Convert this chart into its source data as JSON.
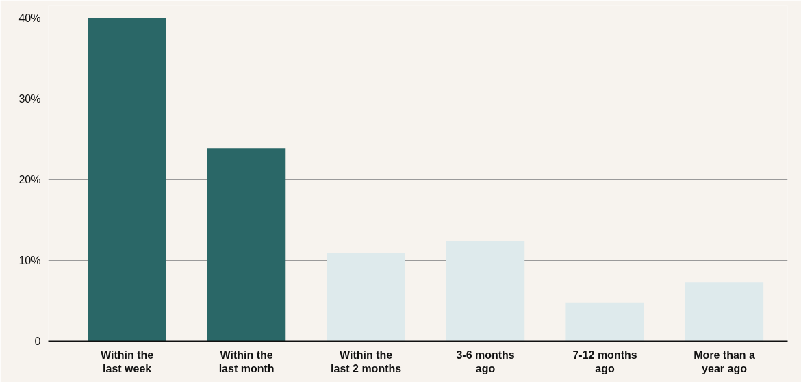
{
  "chart_data": {
    "type": "bar",
    "categories": [
      "Within the\nlast week",
      "Within the\nlast month",
      "Within the\nlast 2 months",
      "3-6 months\nago",
      "7-12 months\nago",
      "More than a\nyear ago"
    ],
    "values": [
      40,
      23.9,
      10.9,
      12.4,
      4.8,
      7.3
    ],
    "colors": [
      "#2a6767",
      "#2a6767",
      "#deeaec",
      "#deeaec",
      "#deeaec",
      "#deeaec"
    ],
    "ylim": [
      0,
      41.5
    ],
    "yticks": [
      {
        "value": 0,
        "label": "0"
      },
      {
        "value": 10,
        "label": "10%"
      },
      {
        "value": 20,
        "label": "20%"
      },
      {
        "value": 30,
        "label": "30%"
      },
      {
        "value": 40,
        "label": "40%"
      }
    ],
    "grid": "y"
  }
}
